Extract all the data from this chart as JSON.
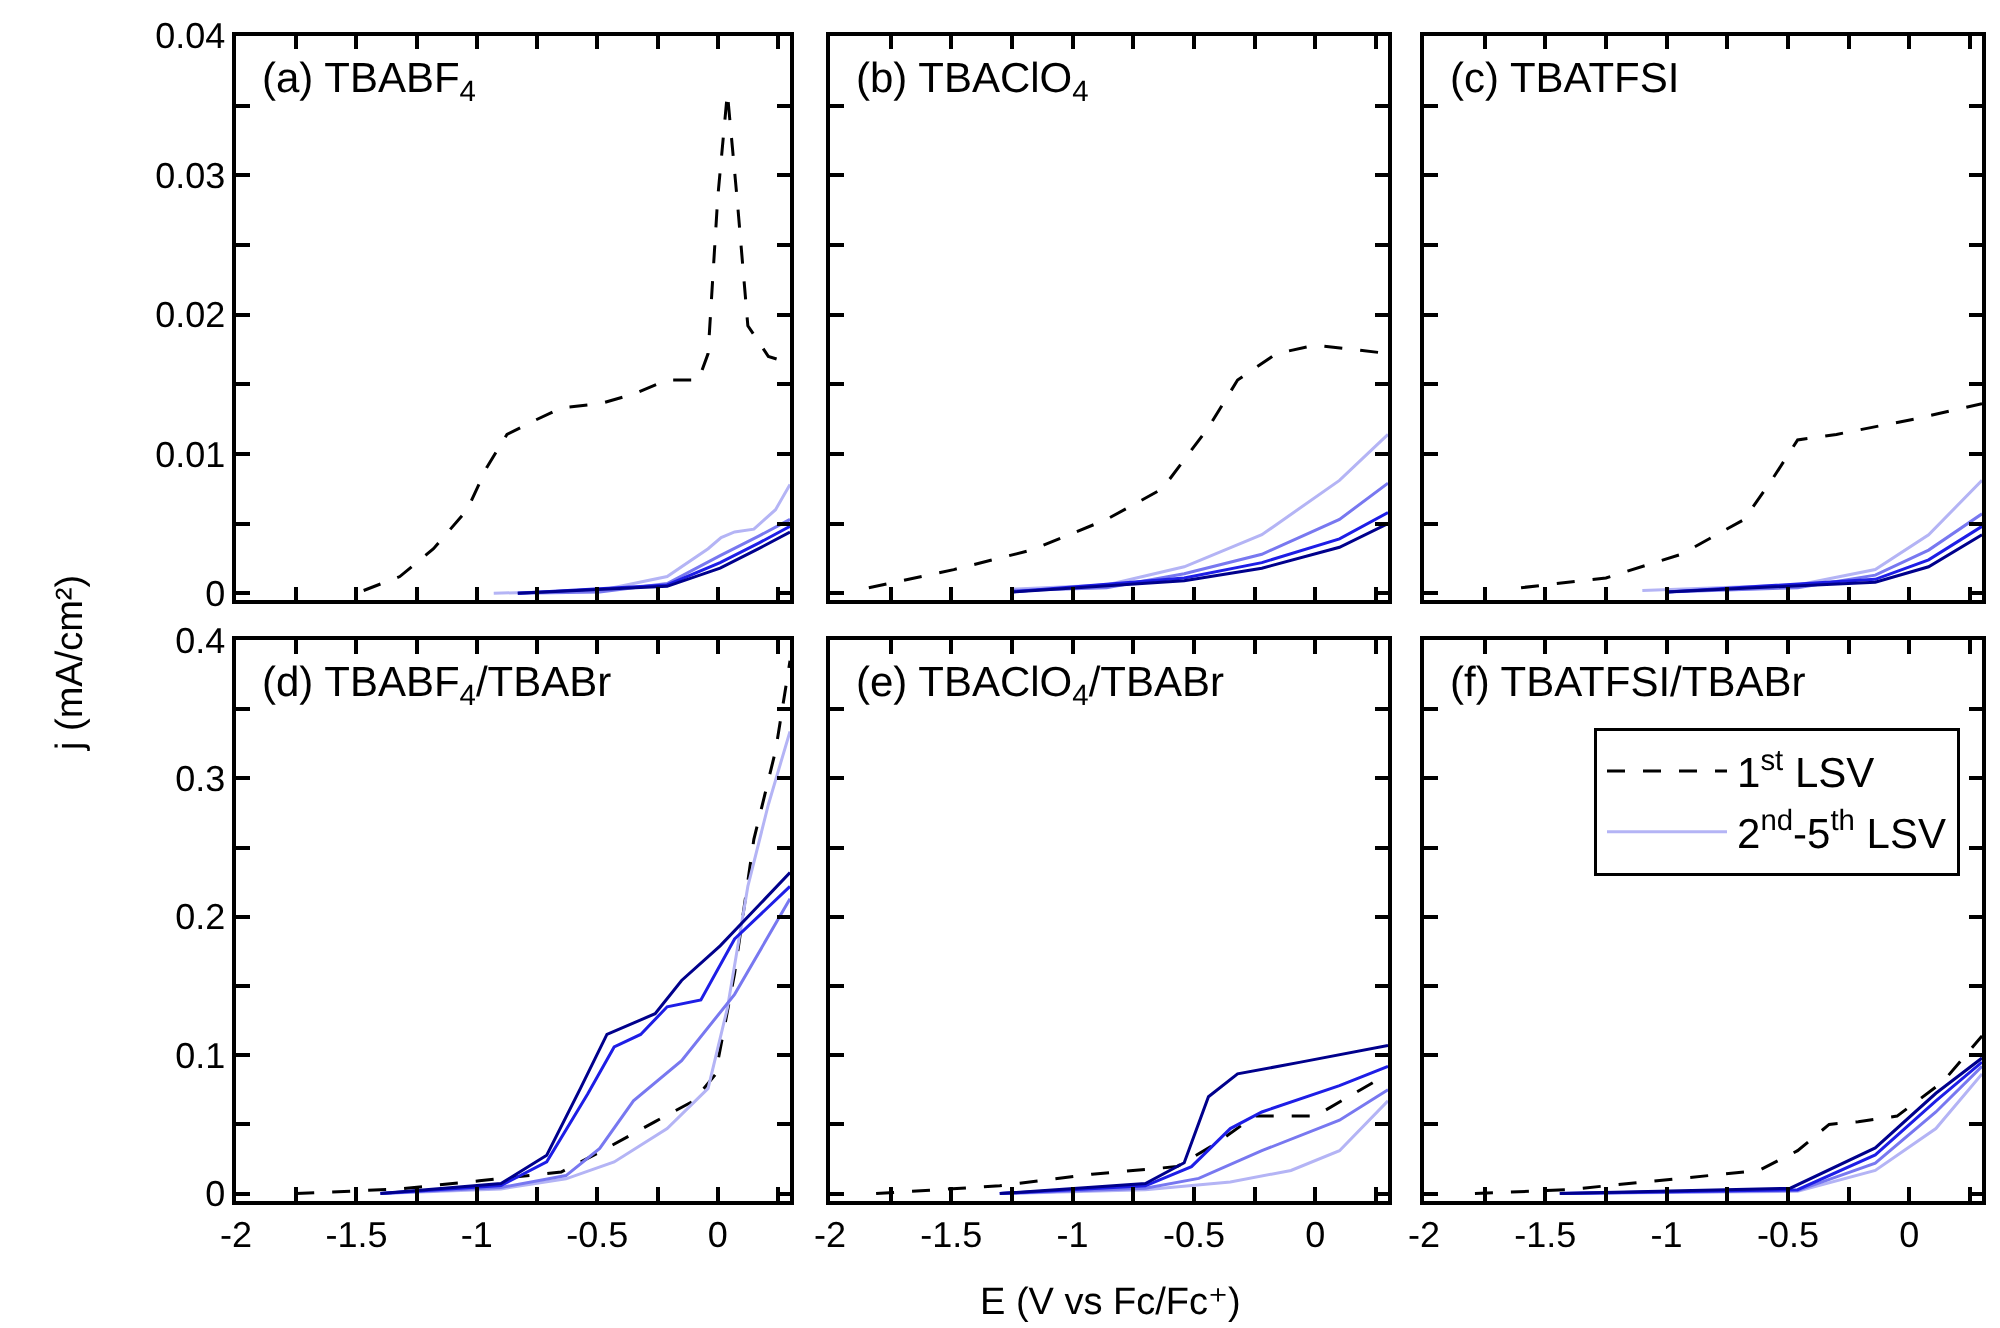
{
  "chart_data": [
    {
      "type": "line",
      "title": "(a) TBABF$_{4}$",
      "ylabel": "j (mA/cm²)",
      "xlim": [
        -2,
        0.3
      ],
      "ylim": [
        -0.0005,
        0.04
      ],
      "tick_labels": "y",
      "grid": false,
      "xticks": [
        -2,
        {
          "value": -1.75,
          "label": null
        },
        -1.5,
        {
          "value": -1.25,
          "label": null
        },
        -1,
        {
          "value": -0.75,
          "label": null
        },
        -0.5,
        {
          "value": -0.25,
          "label": null
        },
        0,
        {
          "value": 0.25,
          "label": null
        }
      ],
      "yticks": [
        0,
        {
          "value": 0.005,
          "label": null
        },
        0.01,
        {
          "value": 0.015,
          "label": null
        },
        0.02,
        {
          "value": 0.025,
          "label": null
        },
        0.03,
        {
          "value": 0.035,
          "label": null
        },
        0.04
      ],
      "series": [
        {
          "color": "#000000",
          "line_style": "dashed",
          "x": [
            -1.47,
            -1.32,
            -1.18,
            -1.04,
            -0.96,
            -0.875,
            -0.76,
            -0.65,
            -0.49,
            -0.35,
            -0.21,
            -0.08,
            -0.04,
            0,
            0.04,
            0.08,
            0.125,
            0.21,
            0.3
          ],
          "values": [
            0.0002,
            0.0012,
            0.0032,
            0.006,
            0.009,
            0.0114,
            0.0124,
            0.0133,
            0.0136,
            0.0143,
            0.0153,
            0.0153,
            0.0172,
            0.0284,
            0.0359,
            0.0284,
            0.0192,
            0.017,
            0.0165
          ]
        },
        {
          "color": "#b4b4f5",
          "line_style": "solid",
          "x": [
            -0.93,
            -0.49,
            -0.21,
            -0.04,
            0.014,
            0.07,
            0.15,
            0.24,
            0.3
          ],
          "values": [
            0,
            0.0002,
            0.0012,
            0.0032,
            0.004,
            0.0044,
            0.0046,
            0.006,
            0.0078
          ]
        },
        {
          "color": "#7878f0",
          "line_style": "solid",
          "x": [
            -0.83,
            -0.49,
            -0.21,
            0.01,
            0.17,
            0.3
          ],
          "values": [
            0,
            0.0001,
            0.0007,
            0.0027,
            0.0041,
            0.0053
          ]
        },
        {
          "color": "#1e1ee6",
          "line_style": "solid",
          "x": [
            -0.83,
            -0.21,
            0.01,
            0.17,
            0.3
          ],
          "values": [
            0,
            0.0006,
            0.0022,
            0.0036,
            0.0048
          ]
        },
        {
          "color": "#00008c",
          "line_style": "solid",
          "x": [
            -0.83,
            -0.21,
            0.01,
            0.17,
            0.3
          ],
          "values": [
            0,
            0.0005,
            0.0018,
            0.0032,
            0.0044
          ]
        }
      ]
    },
    {
      "type": "line",
      "title": "(b) TBAClO$_{4}$",
      "xlim": [
        -2,
        0.3
      ],
      "ylim": [
        -0.0005,
        0.04
      ],
      "tick_labels": false,
      "grid": false,
      "xticks": [
        -2,
        {
          "value": -1.75,
          "label": null
        },
        -1.5,
        {
          "value": -1.25,
          "label": null
        },
        -1,
        {
          "value": -0.75,
          "label": null
        },
        -0.5,
        {
          "value": -0.25,
          "label": null
        },
        0,
        {
          "value": 0.25,
          "label": null
        }
      ],
      "yticks": [
        0,
        {
          "value": 0.005,
          "label": null
        },
        0.01,
        {
          "value": 0.015,
          "label": null
        },
        0.02,
        {
          "value": 0.025,
          "label": null
        },
        0.03,
        {
          "value": 0.035,
          "label": null
        },
        0.04
      ],
      "series": [
        {
          "color": "#000000",
          "line_style": "dashed",
          "x": [
            -1.84,
            -1.49,
            -1.17,
            -0.86,
            -0.63,
            -0.44,
            -0.32,
            -0.16,
            0,
            0.16,
            0.3
          ],
          "values": [
            0.0004,
            0.0017,
            0.0031,
            0.0053,
            0.0075,
            0.0119,
            0.0153,
            0.0172,
            0.0178,
            0.0175,
            0.0172
          ]
        },
        {
          "color": "#b4b4f5",
          "line_style": "solid",
          "x": [
            -1.25,
            -0.86,
            -0.54,
            -0.22,
            0.1,
            0.3
          ],
          "values": [
            0.0003,
            0.0006,
            0.0019,
            0.0042,
            0.0081,
            0.0114
          ]
        },
        {
          "color": "#7878f0",
          "line_style": "solid",
          "x": [
            -1.25,
            -0.86,
            -0.54,
            -0.22,
            0.1,
            0.3
          ],
          "values": [
            0.0002,
            0.0004,
            0.0014,
            0.0028,
            0.0053,
            0.0079
          ]
        },
        {
          "color": "#1e1ee6",
          "line_style": "solid",
          "x": [
            -1.25,
            -0.54,
            -0.22,
            0.1,
            0.3
          ],
          "values": [
            0.0001,
            0.0011,
            0.0022,
            0.0039,
            0.0058
          ]
        },
        {
          "color": "#00008c",
          "line_style": "solid",
          "x": [
            -1.25,
            -0.54,
            -0.22,
            0.1,
            0.3
          ],
          "values": [
            0.0001,
            0.0009,
            0.0018,
            0.0033,
            0.005
          ]
        }
      ]
    },
    {
      "type": "line",
      "title": "(c) TBATFSI",
      "xlim": [
        -2,
        0.3
      ],
      "ylim": [
        -0.0005,
        0.04
      ],
      "tick_labels": false,
      "grid": false,
      "xticks": [
        -2,
        {
          "value": -1.75,
          "label": null
        },
        -1.5,
        {
          "value": -1.25,
          "label": null
        },
        -1,
        {
          "value": -0.75,
          "label": null
        },
        -0.5,
        {
          "value": -0.25,
          "label": null
        },
        0,
        {
          "value": 0.25,
          "label": null
        }
      ],
      "yticks": [
        0,
        {
          "value": 0.005,
          "label": null
        },
        0.01,
        {
          "value": 0.015,
          "label": null
        },
        0.02,
        {
          "value": 0.025,
          "label": null
        },
        0.03,
        {
          "value": 0.035,
          "label": null
        },
        0.04
      ],
      "series": [
        {
          "color": "#000000",
          "line_style": "dashed",
          "x": [
            -1.6,
            -1.25,
            -0.94,
            -0.68,
            -0.56,
            -0.46,
            -0.3,
            0.02,
            0.3
          ],
          "values": [
            0.0004,
            0.0011,
            0.0028,
            0.0053,
            0.0083,
            0.011,
            0.0114,
            0.0125,
            0.0136
          ]
        },
        {
          "color": "#b4b4f5",
          "line_style": "solid",
          "x": [
            -1.1,
            -0.46,
            -0.14,
            0.08,
            0.3
          ],
          "values": [
            0.0002,
            0.0006,
            0.0017,
            0.0042,
            0.0081
          ]
        },
        {
          "color": "#7878f0",
          "line_style": "solid",
          "x": [
            -1,
            -0.46,
            -0.14,
            0.08,
            0.3
          ],
          "values": [
            0.0001,
            0.0004,
            0.0013,
            0.0031,
            0.0057
          ]
        },
        {
          "color": "#1e1ee6",
          "line_style": "solid",
          "x": [
            -1,
            -0.14,
            0.08,
            0.3
          ],
          "values": [
            0.0001,
            0.001,
            0.0024,
            0.0048
          ]
        },
        {
          "color": "#00008c",
          "line_style": "solid",
          "x": [
            -1,
            -0.14,
            0.08,
            0.3
          ],
          "values": [
            0.0001,
            0.0008,
            0.0019,
            0.0042
          ]
        }
      ]
    },
    {
      "type": "line",
      "title": "(d) TBABF$_{4}$/TBABr",
      "xlim": [
        -2,
        0.3
      ],
      "ylim": [
        -0.005,
        0.4
      ],
      "grid": false,
      "xticks": [
        -2,
        {
          "value": -1.75,
          "label": null
        },
        -1.5,
        {
          "value": -1.25,
          "label": null
        },
        -1,
        {
          "value": -0.75,
          "label": null
        },
        -0.5,
        {
          "value": -0.25,
          "label": null
        },
        0,
        {
          "value": 0.25,
          "label": null
        }
      ],
      "yticks": [
        0,
        {
          "value": 0.05,
          "label": null
        },
        0.1,
        {
          "value": 0.15,
          "label": null
        },
        0.2,
        {
          "value": 0.25,
          "label": null
        },
        0.3,
        {
          "value": 0.35,
          "label": null
        },
        0.4
      ],
      "series": [
        {
          "color": "#000000",
          "line_style": "dashed",
          "x": [
            -1.75,
            -1.32,
            -0.99,
            -0.65,
            -0.49,
            -0.26,
            -0.1,
            -0.01,
            0.07,
            0.15,
            0.24,
            0.3
          ],
          "values": [
            0,
            0.0034,
            0.0092,
            0.0156,
            0.03,
            0.052,
            0.067,
            0.086,
            0.159,
            0.256,
            0.32,
            0.385
          ]
        },
        {
          "color": "#b4b4f5",
          "line_style": "solid",
          "x": [
            -1.4,
            -0.9,
            -0.63,
            -0.43,
            -0.21,
            -0.04,
            0.04,
            0.125,
            0.21,
            0.3
          ],
          "values": [
            0,
            0.0034,
            0.0107,
            0.0229,
            0.047,
            0.076,
            0.134,
            0.222,
            0.281,
            0.334
          ]
        },
        {
          "color": "#7878f0",
          "line_style": "solid",
          "x": [
            -1.4,
            -0.9,
            -0.63,
            -0.49,
            -0.35,
            -0.15,
            0.07,
            0.3
          ],
          "values": [
            0,
            0.0044,
            0.013,
            0.0326,
            0.067,
            0.096,
            0.144,
            0.213
          ]
        },
        {
          "color": "#1e1ee6",
          "line_style": "solid",
          "x": [
            -1.4,
            -0.9,
            -0.71,
            -0.54,
            -0.43,
            -0.32,
            -0.21,
            -0.07,
            0.07,
            0.3
          ],
          "values": [
            0,
            0.0058,
            0.0229,
            0.072,
            0.106,
            0.115,
            0.135,
            0.14,
            0.184,
            0.222
          ]
        },
        {
          "color": "#00008c",
          "line_style": "solid",
          "x": [
            -1.4,
            -0.9,
            -0.71,
            -0.57,
            -0.46,
            -0.26,
            -0.15,
            0.01,
            0.3
          ],
          "values": [
            0,
            0.0073,
            0.0277,
            0.076,
            0.115,
            0.13,
            0.154,
            0.179,
            0.232
          ]
        }
      ]
    },
    {
      "type": "line",
      "title": "(e) TBAClO$_{4}$/TBABr",
      "xlabel": "E (V vs Fc/Fc⁺)",
      "xlim": [
        -2,
        0.3
      ],
      "ylim": [
        -0.005,
        0.4
      ],
      "tick_labels": "x",
      "grid": false,
      "xticks": [
        -2,
        {
          "value": -1.75,
          "label": null
        },
        -1.5,
        {
          "value": -1.25,
          "label": null
        },
        -1,
        {
          "value": -0.75,
          "label": null
        },
        -0.5,
        {
          "value": -0.25,
          "label": null
        },
        0,
        {
          "value": 0.25,
          "label": null
        }
      ],
      "yticks": [
        0,
        {
          "value": 0.05,
          "label": null
        },
        0.1,
        {
          "value": 0.15,
          "label": null
        },
        0.2,
        {
          "value": 0.25,
          "label": null
        },
        0.3,
        {
          "value": 0.35,
          "label": null
        },
        0.4
      ],
      "series": [
        {
          "color": "#000000",
          "line_style": "dashed",
          "x": [
            -1.81,
            -1.3,
            -0.92,
            -0.57,
            -0.41,
            -0.25,
            0,
            0.3
          ],
          "values": [
            0,
            0.0056,
            0.014,
            0.0195,
            0.036,
            0.056,
            0.056,
            0.0865
          ]
        },
        {
          "color": "#b4b4f5",
          "line_style": "solid",
          "x": [
            -1.3,
            -0.7,
            -0.35,
            -0.1,
            0.1,
            0.3
          ],
          "values": [
            0,
            0.0028,
            0.0084,
            0.0167,
            0.031,
            0.067
          ]
        },
        {
          "color": "#7878f0",
          "line_style": "solid",
          "x": [
            -1.3,
            -0.7,
            -0.48,
            -0.22,
            0.1,
            0.3
          ],
          "values": [
            0,
            0.0039,
            0.011,
            0.031,
            0.053,
            0.075
          ]
        },
        {
          "color": "#1e1ee6",
          "line_style": "solid",
          "x": [
            -1.3,
            -0.7,
            -0.51,
            -0.35,
            -0.22,
            0.1,
            0.3
          ],
          "values": [
            0,
            0.0056,
            0.0195,
            0.047,
            0.059,
            0.078,
            0.092
          ]
        },
        {
          "color": "#00008c",
          "line_style": "solid",
          "x": [
            -1.3,
            -0.7,
            -0.54,
            -0.44,
            -0.32,
            -0.06,
            0.3
          ],
          "values": [
            0,
            0.0073,
            0.0223,
            0.07,
            0.0865,
            0.095,
            0.107
          ]
        }
      ]
    },
    {
      "type": "line",
      "title": "(f) TBATFSI/TBABr",
      "xlim": [
        -2,
        0.3
      ],
      "ylim": [
        -0.005,
        0.4
      ],
      "tick_labels": "x",
      "grid": false,
      "legend": "top right",
      "xticks": [
        -2,
        {
          "value": -1.75,
          "label": null
        },
        -1.5,
        {
          "value": -1.25,
          "label": null
        },
        -1,
        {
          "value": -0.75,
          "label": null
        },
        -0.5,
        {
          "value": -0.25,
          "label": null
        },
        0,
        {
          "value": 0.25,
          "label": null
        }
      ],
      "yticks": [
        0,
        {
          "value": 0.05,
          "label": null
        },
        0.1,
        {
          "value": 0.15,
          "label": null
        },
        0.2,
        {
          "value": 0.25,
          "label": null
        },
        0.3,
        {
          "value": 0.35,
          "label": null
        },
        0.4
      ],
      "series": [
        {
          "name": "1$^{st}$ LSV",
          "color": "#000000",
          "line_style": "dashed",
          "x": [
            -1.79,
            -1.41,
            -0.94,
            -0.62,
            -0.46,
            -0.33,
            -0.21,
            -0.05,
            0.14,
            0.3
          ],
          "values": [
            0,
            0.0028,
            0.011,
            0.0167,
            0.031,
            0.05,
            0.052,
            0.056,
            0.081,
            0.114
          ]
        },
        {
          "name": "2$^{nd}$-5$^{th}$ LSV",
          "color": "#b4b4f5",
          "line_style": "solid",
          "x": [
            -1.44,
            -0.46,
            -0.14,
            0.11,
            0.3
          ],
          "values": [
            0,
            0.0017,
            0.0167,
            0.047,
            0.0865
          ]
        },
        {
          "color": "#7878f0",
          "line_style": "solid",
          "x": [
            -1.44,
            -0.46,
            -0.14,
            0.11,
            0.3
          ],
          "values": [
            0,
            0.0022,
            0.022,
            0.059,
            0.092
          ]
        },
        {
          "color": "#1e1ee6",
          "line_style": "solid",
          "x": [
            -1.44,
            -0.46,
            -0.14,
            0.11,
            0.3
          ],
          "values": [
            0,
            0.0028,
            0.028,
            0.067,
            0.095
          ]
        },
        {
          "color": "#00008c",
          "line_style": "solid",
          "x": [
            -1.44,
            -0.49,
            -0.14,
            0.11,
            0.3
          ],
          "values": [
            0,
            0.0039,
            0.033,
            0.0725,
            0.098
          ]
        }
      ]
    }
  ]
}
